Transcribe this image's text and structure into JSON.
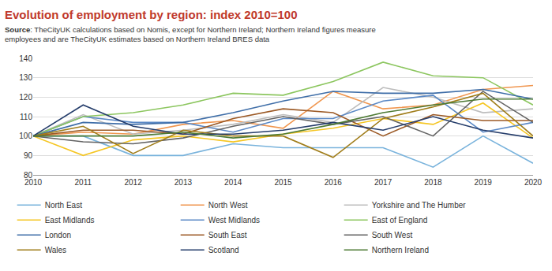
{
  "chart_data": {
    "type": "line",
    "title": "Evolution of employment by region: index 2010=100",
    "subtitle": "Source: TheCityUK calculations based on Nomis, except for Northern Ireland; Northern Ireland figures measure employees and are TheCityUK estimates based on Northern Ireland BRES data",
    "x": [
      2010,
      2011,
      2012,
      2013,
      2014,
      2015,
      2016,
      2017,
      2018,
      2019,
      2020
    ],
    "xlim": [
      2010,
      2020
    ],
    "xticks": [
      2010,
      2011,
      2012,
      2013,
      2014,
      2015,
      2016,
      2017,
      2018,
      2019,
      2020
    ],
    "ylim": [
      80,
      140
    ],
    "yticks": [
      80,
      90,
      100,
      110,
      120,
      130,
      140
    ],
    "grid": true,
    "legend": "bottom",
    "series": [
      {
        "name": "North East",
        "color": "#79b3dc",
        "values": [
          100,
          100,
          90,
          90,
          96,
          94,
          94,
          94,
          84,
          100,
          86
        ]
      },
      {
        "name": "North West",
        "color": "#f0964f",
        "values": [
          100,
          102,
          101,
          106,
          108,
          104,
          123,
          114,
          116,
          124,
          126
        ]
      },
      {
        "name": "Yorkshire and The Humber",
        "color": "#bdbdbd",
        "values": [
          100,
          111,
          101,
          103,
          106,
          111,
          107,
          125,
          120,
          112,
          114
        ]
      },
      {
        "name": "East Midlands",
        "color": "#f5c623",
        "values": [
          100,
          90,
          98,
          100,
          97,
          101,
          104,
          109,
          106,
          117,
          99
        ]
      },
      {
        "name": "West Midlands",
        "color": "#5b89c6",
        "values": [
          100,
          110,
          107,
          107,
          102,
          109,
          109,
          118,
          121,
          102,
          107
        ]
      },
      {
        "name": "East of England",
        "color": "#8cc65f",
        "values": [
          100,
          110,
          112,
          116,
          122,
          121,
          128,
          138,
          131,
          130,
          116
        ]
      },
      {
        "name": "London",
        "color": "#3f6ea8",
        "values": [
          100,
          107,
          106,
          107,
          112,
          118,
          123,
          122,
          122,
          124,
          119
        ]
      },
      {
        "name": "South East",
        "color": "#9c5a26",
        "values": [
          100,
          103,
          103,
          101,
          109,
          114,
          112,
          100,
          111,
          108,
          108
        ]
      },
      {
        "name": "South West",
        "color": "#636363",
        "values": [
          100,
          97,
          96,
          99,
          105,
          110,
          106,
          110,
          100,
          123,
          107
        ]
      },
      {
        "name": "Wales",
        "color": "#a07d1a",
        "values": [
          100,
          105,
          91,
          103,
          100,
          100,
          89,
          109,
          115,
          122,
          100
        ]
      },
      {
        "name": "Scotland",
        "color": "#253d6b",
        "values": [
          100,
          116,
          105,
          101,
          101,
          103,
          107,
          103,
          110,
          103,
          99
        ]
      },
      {
        "name": "Northern Ireland",
        "color": "#4d7a34",
        "values": [
          100,
          100,
          100,
          102,
          99,
          101,
          106,
          112,
          116,
          119,
          119
        ]
      }
    ]
  }
}
